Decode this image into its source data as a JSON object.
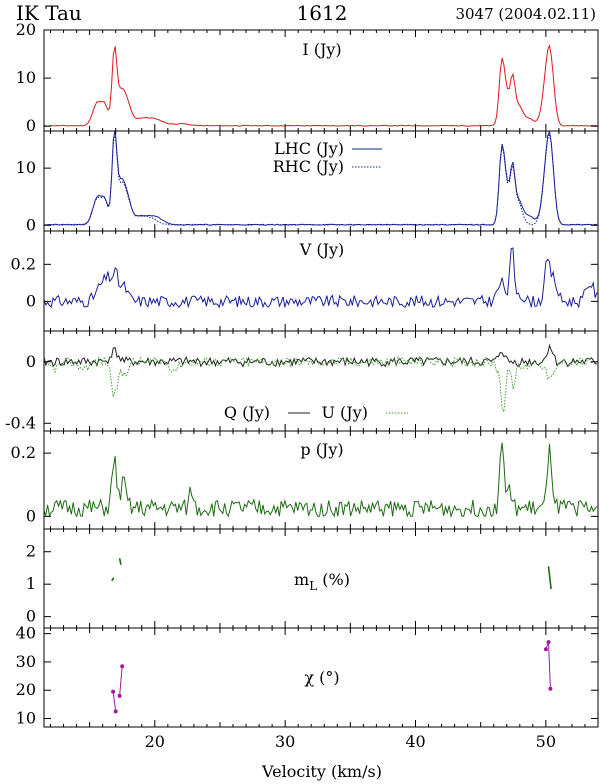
{
  "header": {
    "star": "IK Tau",
    "line": "1612",
    "epoch": "3047 (2004.02.11)"
  },
  "chart_data": {
    "type": "line",
    "x_range": [
      11.5,
      54
    ],
    "x_ticks": [
      20,
      30,
      40,
      50
    ],
    "x_tick_labels": [
      "20",
      "30",
      "40",
      "50"
    ],
    "xlabel": "Velocity (km/s)",
    "colors": {
      "red": "#e8151b",
      "blue": "#1c2196",
      "green": "#1f6b14",
      "dotgreen": "#3e9e2b",
      "purple": "#a01aa6"
    },
    "panels": [
      {
        "id": "I",
        "ylim": [
          -1.0,
          20.0
        ],
        "y_ticks": [
          0,
          10,
          20
        ],
        "y_tick_labels": [
          "0",
          "10",
          "20"
        ],
        "labels": [
          {
            "text": "I (Jy)",
            "sub": ""
          }
        ],
        "series": [
          {
            "name": "I (Jy)",
            "color_key": "red",
            "dash": "",
            "seed": 11,
            "noise": 0.08,
            "base": 0.1,
            "peaks": [
              [
                15.6,
                4.8,
                0.35
              ],
              [
                16.2,
                3.5,
                0.25
              ],
              [
                16.9,
                15.0,
                0.18
              ],
              [
                17.4,
                6.5,
                0.3
              ],
              [
                17.9,
                3.8,
                0.3
              ],
              [
                18.8,
                1.3,
                0.5
              ],
              [
                19.7,
                1.1,
                0.5
              ],
              [
                20.4,
                0.7,
                0.5
              ],
              [
                22.0,
                0.4,
                0.6
              ],
              [
                46.6,
                11.3,
                0.2
              ],
              [
                46.95,
                6.5,
                0.25
              ],
              [
                47.45,
                8.7,
                0.18
              ],
              [
                47.9,
                4.0,
                0.3
              ],
              [
                48.7,
                1.5,
                0.4
              ],
              [
                50.3,
                14.8,
                0.3
              ],
              [
                49.9,
                4.0,
                0.3
              ]
            ]
          }
        ]
      },
      {
        "id": "LHC-RHC",
        "ylim": [
          -1.0,
          16.5
        ],
        "y_ticks": [
          0,
          10
        ],
        "y_tick_labels": [
          "0",
          "10"
        ],
        "labels": [
          {
            "text": "LHC (Jy)",
            "sub": ""
          },
          {
            "text": "RHC (Jy)",
            "sub": ""
          }
        ],
        "series": [
          {
            "name": "LHC (Jy)",
            "color_key": "blue",
            "dash": "",
            "seed": 21,
            "noise": 0.08,
            "base": 0.1,
            "peaks": [
              [
                15.6,
                4.8,
                0.35
              ],
              [
                16.2,
                3.5,
                0.25
              ],
              [
                16.9,
                15.0,
                0.18
              ],
              [
                17.4,
                6.8,
                0.3
              ],
              [
                17.9,
                3.8,
                0.3
              ],
              [
                18.8,
                1.3,
                0.5
              ],
              [
                19.7,
                1.1,
                0.5
              ],
              [
                20.4,
                0.7,
                0.5
              ],
              [
                46.6,
                11.3,
                0.2
              ],
              [
                46.95,
                6.5,
                0.25
              ],
              [
                47.45,
                8.9,
                0.18
              ],
              [
                47.9,
                4.0,
                0.3
              ],
              [
                48.7,
                1.5,
                0.4
              ],
              [
                50.3,
                14.6,
                0.3
              ],
              [
                49.9,
                4.0,
                0.3
              ]
            ]
          },
          {
            "name": "RHC (Jy)",
            "color_key": "blue",
            "dash": "1.5,1.5",
            "seed": 22,
            "noise": 0.08,
            "base": 0.1,
            "peaks": [
              [
                15.6,
                4.6,
                0.35
              ],
              [
                16.2,
                3.4,
                0.25
              ],
              [
                16.9,
                14.6,
                0.18
              ],
              [
                17.4,
                6.2,
                0.3
              ],
              [
                17.9,
                3.6,
                0.3
              ],
              [
                18.8,
                1.3,
                0.5
              ],
              [
                19.7,
                1.0,
                0.5
              ],
              [
                46.6,
                11.0,
                0.2
              ],
              [
                46.95,
                6.3,
                0.25
              ],
              [
                47.45,
                8.4,
                0.18
              ],
              [
                47.9,
                3.8,
                0.3
              ],
              [
                50.3,
                14.2,
                0.3
              ],
              [
                49.9,
                3.8,
                0.3
              ]
            ]
          }
        ]
      },
      {
        "id": "V",
        "ylim": [
          -0.16,
          0.38
        ],
        "y_ticks": [
          0,
          0.2
        ],
        "y_tick_labels": [
          "0",
          "0.2"
        ],
        "labels": [
          {
            "text": "V (Jy)",
            "sub": ""
          }
        ],
        "series": [
          {
            "name": "V (Jy)",
            "color_key": "blue",
            "dash": "",
            "seed": 31,
            "noise": 0.032,
            "base": 0.0,
            "peaks": [
              [
                15.9,
                0.08,
                0.4
              ],
              [
                16.5,
                0.1,
                0.3
              ],
              [
                17.0,
                0.12,
                0.2
              ],
              [
                17.6,
                0.08,
                0.3
              ],
              [
                46.6,
                0.1,
                0.3
              ],
              [
                47.4,
                0.28,
                0.15
              ],
              [
                47.9,
                0.05,
                0.3
              ],
              [
                50.1,
                0.2,
                0.2
              ],
              [
                50.6,
                0.12,
                0.25
              ],
              [
                53.4,
                0.1,
                0.3
              ]
            ]
          }
        ]
      },
      {
        "id": "QU",
        "ylim": [
          -0.45,
          0.2
        ],
        "y_ticks": [
          0,
          -0.4
        ],
        "y_tick_labels": [
          "0",
          "-0.4"
        ],
        "labels": [
          {
            "text": "Q (Jy)",
            "sub": ""
          },
          {
            "text": "U (Jy)",
            "sub": ""
          }
        ],
        "series": [
          {
            "name": "Q (Jy)",
            "color_key": "blue",
            "dash": "",
            "seed": 41,
            "noise": 0.03,
            "base": 0.0,
            "stroke": "#222222",
            "peaks": [
              [
                16.9,
                0.07,
                0.3
              ],
              [
                46.6,
                0.08,
                0.2
              ],
              [
                50.3,
                0.11,
                0.2
              ]
            ]
          },
          {
            "name": "U (Jy)",
            "color_key": "dotgreen",
            "dash": "1.5,1.5",
            "seed": 42,
            "noise": 0.03,
            "base": 0.0,
            "peaks": [
              [
                12.3,
                -0.04,
                0.5
              ],
              [
                14.5,
                -0.04,
                0.4
              ],
              [
                16.9,
                -0.21,
                0.22
              ],
              [
                17.6,
                -0.08,
                0.3
              ],
              [
                21.5,
                -0.05,
                0.3
              ],
              [
                46.5,
                -0.07,
                0.3
              ],
              [
                46.75,
                -0.28,
                0.15
              ],
              [
                47.5,
                -0.15,
                0.2
              ],
              [
                48.3,
                -0.04,
                0.3
              ],
              [
                50.2,
                -0.08,
                0.3
              ],
              [
                50.6,
                -0.06,
                0.25
              ]
            ]
          }
        ]
      },
      {
        "id": "p",
        "ylim": [
          -0.04,
          0.27
        ],
        "y_ticks": [
          0,
          0.2
        ],
        "y_tick_labels": [
          "0",
          "0.2"
        ],
        "labels": [
          {
            "text": "p (Jy)",
            "sub": ""
          }
        ],
        "series": [
          {
            "name": "p (Jy)",
            "color_key": "green",
            "dash": "",
            "seed": 51,
            "noise": 0.028,
            "base": 0.025,
            "clip0": true,
            "peaks": [
              [
                16.9,
                0.15,
                0.18
              ],
              [
                17.6,
                0.08,
                0.2
              ],
              [
                22.8,
                0.06,
                0.15
              ],
              [
                46.6,
                0.22,
                0.15
              ],
              [
                47.1,
                0.06,
                0.2
              ],
              [
                50.3,
                0.18,
                0.18
              ]
            ]
          }
        ]
      },
      {
        "id": "mL",
        "ylim": [
          -0.35,
          2.7
        ],
        "y_ticks": [
          0,
          1,
          2
        ],
        "y_tick_labels": [
          "0",
          "1",
          "2"
        ],
        "labels": [
          {
            "text": "m",
            "sub": "L",
            "after": " (%)"
          }
        ],
        "segments": [
          {
            "color_key": "green",
            "points": [
              [
                16.7,
                1.1
              ],
              [
                16.85,
                1.2
              ]
            ]
          },
          {
            "color_key": "green",
            "points": [
              [
                17.3,
                1.8
              ],
              [
                17.4,
                1.6
              ]
            ]
          },
          {
            "color_key": "green",
            "points": [
              [
                50.2,
                1.55
              ],
              [
                50.3,
                1.2
              ],
              [
                50.4,
                0.85
              ]
            ]
          }
        ]
      },
      {
        "id": "chi",
        "ylim": [
          7,
          42
        ],
        "y_ticks": [
          10,
          20,
          30,
          40
        ],
        "y_tick_labels": [
          "10",
          "20",
          "30",
          "40"
        ],
        "labels": [
          {
            "text": "χ (°)",
            "sub": ""
          }
        ],
        "segments": [
          {
            "color_key": "purple",
            "markers": true,
            "points": [
              [
                16.8,
                19.5
              ],
              [
                17.0,
                12.5
              ]
            ]
          },
          {
            "color_key": "purple",
            "markers": true,
            "points": [
              [
                17.3,
                18
              ],
              [
                17.5,
                28.5
              ]
            ]
          },
          {
            "color_key": "purple",
            "markers": true,
            "points": [
              [
                50.0,
                34.5
              ],
              [
                50.2,
                37
              ],
              [
                50.35,
                20.5
              ]
            ]
          }
        ]
      }
    ]
  }
}
